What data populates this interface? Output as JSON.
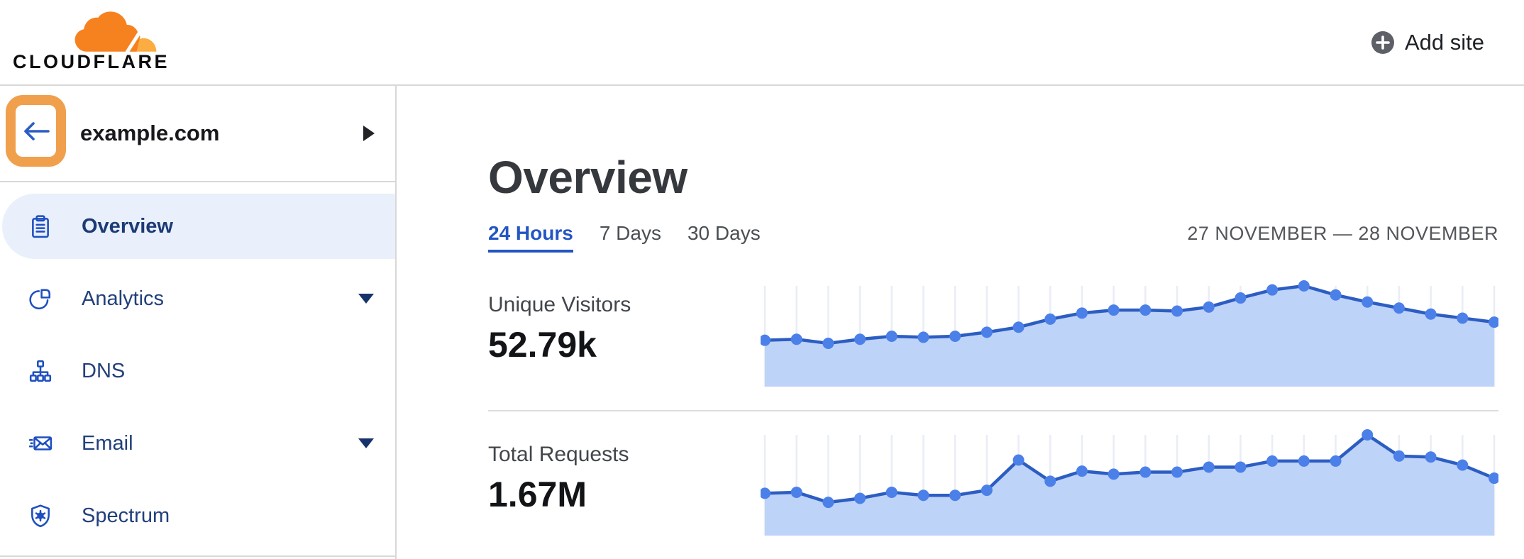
{
  "brand": {
    "logo_text": "CLOUDFLARE",
    "cloud_color": "#F6821F",
    "cloud_light_color": "#FBAD41"
  },
  "topbar": {
    "add_site_label": "Add site"
  },
  "sidebar": {
    "site": {
      "name": "example.com"
    },
    "back_button_highlight_color": "#F0A04C",
    "items": [
      {
        "label": "Overview",
        "icon": "clipboard-icon",
        "selected": true,
        "has_dropdown": false
      },
      {
        "label": "Analytics",
        "icon": "pie-chart-icon",
        "selected": false,
        "has_dropdown": true
      },
      {
        "label": "DNS",
        "icon": "dns-tree-icon",
        "selected": false,
        "has_dropdown": false
      },
      {
        "label": "Email",
        "icon": "email-icon",
        "selected": false,
        "has_dropdown": true
      },
      {
        "label": "Spectrum",
        "icon": "spectrum-shield-icon",
        "selected": false,
        "has_dropdown": false
      }
    ]
  },
  "main": {
    "title": "Overview",
    "tabs": [
      {
        "label": "24 Hours",
        "active": true
      },
      {
        "label": "7 Days",
        "active": false
      },
      {
        "label": "30 Days",
        "active": false
      }
    ],
    "date_range": "27 NOVEMBER — 28 NOVEMBER"
  },
  "chart_data": [
    {
      "type": "area",
      "title": "Unique Visitors",
      "total": "52.79k",
      "x_description": "24 hourly data points, 27 November — 28 November",
      "n_points": 24,
      "values_normalized": [
        0.46,
        0.47,
        0.43,
        0.47,
        0.5,
        0.49,
        0.5,
        0.54,
        0.59,
        0.67,
        0.73,
        0.76,
        0.76,
        0.75,
        0.79,
        0.88,
        0.96,
        1.0,
        0.91,
        0.84,
        0.78,
        0.72,
        0.68,
        0.64
      ],
      "ylim": [
        0,
        1
      ],
      "grid": "vertical gridlines at each point",
      "legend": "none",
      "colors": {
        "line": "#2c5dc2",
        "dot": "#4c80e9",
        "area": "#bed3f8",
        "grid": "#e9edf5"
      }
    },
    {
      "type": "area",
      "title": "Total Requests",
      "total": "1.67M",
      "x_description": "24 hourly data points, 27 November — 28 November",
      "n_points": 24,
      "values_normalized": [
        0.42,
        0.43,
        0.33,
        0.37,
        0.43,
        0.4,
        0.4,
        0.45,
        0.75,
        0.54,
        0.64,
        0.61,
        0.63,
        0.63,
        0.68,
        0.68,
        0.74,
        0.74,
        0.74,
        1.0,
        0.79,
        0.78,
        0.7,
        0.57
      ],
      "ylim": [
        0,
        1
      ],
      "grid": "vertical gridlines at each point",
      "legend": "none",
      "colors": {
        "line": "#2c5dc2",
        "dot": "#4c80e9",
        "area": "#bed3f8",
        "grid": "#e9edf5"
      }
    }
  ]
}
